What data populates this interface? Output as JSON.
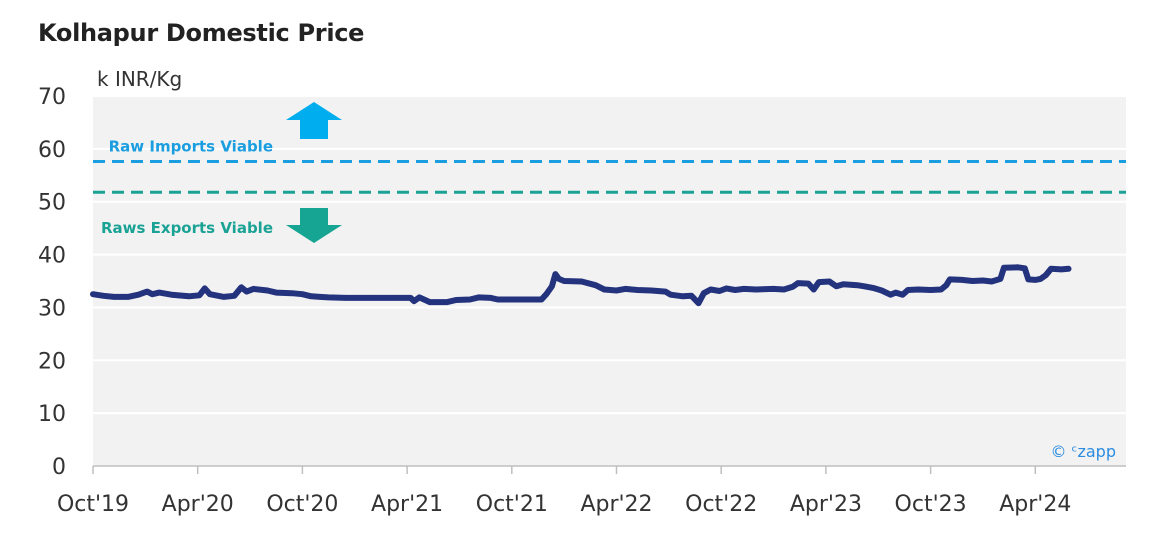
{
  "chart_data": {
    "type": "line",
    "title": "Kolhapur Domestic Price",
    "unit_label": "k INR/Kg",
    "ylim": [
      0,
      70
    ],
    "yticks": [
      0,
      10,
      20,
      30,
      40,
      50,
      60,
      70
    ],
    "x_tick_labels": [
      "Oct'19",
      "Apr'20",
      "Oct'20",
      "Apr'21",
      "Oct'21",
      "Apr'22",
      "Oct'22",
      "Apr'23",
      "Oct'23",
      "Apr'24"
    ],
    "xlim_months": [
      0,
      59.3
    ],
    "grid": true,
    "background": "#f2f2f2",
    "reference_lines": [
      {
        "label": "Raw Imports Viable",
        "value": 57.6,
        "color": "#1a9ee0",
        "arrow": "up"
      },
      {
        "label": "Raws Exports Viable",
        "value": 51.8,
        "color": "#1aa395",
        "arrow": "down"
      }
    ],
    "series": [
      {
        "color": "#24337d",
        "points": [
          [
            0.0,
            32.5
          ],
          [
            0.6,
            32.2
          ],
          [
            1.2,
            32.0
          ],
          [
            2.0,
            32.0
          ],
          [
            2.6,
            32.4
          ],
          [
            3.1,
            33.0
          ],
          [
            3.4,
            32.5
          ],
          [
            3.8,
            32.8
          ],
          [
            4.5,
            32.4
          ],
          [
            5.5,
            32.1
          ],
          [
            6.1,
            32.3
          ],
          [
            6.4,
            33.6
          ],
          [
            6.7,
            32.5
          ],
          [
            7.5,
            32.0
          ],
          [
            8.1,
            32.2
          ],
          [
            8.5,
            33.8
          ],
          [
            8.8,
            33.0
          ],
          [
            9.2,
            33.5
          ],
          [
            10.0,
            33.2
          ],
          [
            10.5,
            32.8
          ],
          [
            11.4,
            32.7
          ],
          [
            12.0,
            32.5
          ],
          [
            12.5,
            32.1
          ],
          [
            13.0,
            32.0
          ],
          [
            13.5,
            31.9
          ],
          [
            14.5,
            31.8
          ],
          [
            16.0,
            31.8
          ],
          [
            17.5,
            31.8
          ],
          [
            18.2,
            31.8
          ],
          [
            18.4,
            31.2
          ],
          [
            18.7,
            31.9
          ],
          [
            19.3,
            31.0
          ],
          [
            20.3,
            31.0
          ],
          [
            20.8,
            31.4
          ],
          [
            21.6,
            31.5
          ],
          [
            22.1,
            31.9
          ],
          [
            22.8,
            31.8
          ],
          [
            23.2,
            31.5
          ],
          [
            24.0,
            31.5
          ],
          [
            25.0,
            31.5
          ],
          [
            25.7,
            31.5
          ],
          [
            26.0,
            32.6
          ],
          [
            26.3,
            34.0
          ],
          [
            26.5,
            36.3
          ],
          [
            26.7,
            35.4
          ],
          [
            27.0,
            35.0
          ],
          [
            28.0,
            34.9
          ],
          [
            28.8,
            34.2
          ],
          [
            29.3,
            33.4
          ],
          [
            30.0,
            33.2
          ],
          [
            30.5,
            33.5
          ],
          [
            31.2,
            33.3
          ],
          [
            32.0,
            33.2
          ],
          [
            32.8,
            33.0
          ],
          [
            33.1,
            32.4
          ],
          [
            33.8,
            32.1
          ],
          [
            34.3,
            32.2
          ],
          [
            34.7,
            30.8
          ],
          [
            35.0,
            32.7
          ],
          [
            35.4,
            33.4
          ],
          [
            35.9,
            33.1
          ],
          [
            36.3,
            33.6
          ],
          [
            36.8,
            33.3
          ],
          [
            37.3,
            33.5
          ],
          [
            38.0,
            33.4
          ],
          [
            39.0,
            33.5
          ],
          [
            39.6,
            33.4
          ],
          [
            40.1,
            33.9
          ],
          [
            40.4,
            34.6
          ],
          [
            41.0,
            34.5
          ],
          [
            41.3,
            33.4
          ],
          [
            41.6,
            34.8
          ],
          [
            42.2,
            34.9
          ],
          [
            42.6,
            34.0
          ],
          [
            43.0,
            34.4
          ],
          [
            43.8,
            34.2
          ],
          [
            44.2,
            34.0
          ],
          [
            44.7,
            33.7
          ],
          [
            45.2,
            33.2
          ],
          [
            45.7,
            32.4
          ],
          [
            46.0,
            32.8
          ],
          [
            46.4,
            32.4
          ],
          [
            46.7,
            33.3
          ],
          [
            47.3,
            33.4
          ],
          [
            48.0,
            33.3
          ],
          [
            48.6,
            33.4
          ],
          [
            48.9,
            34.2
          ],
          [
            49.1,
            35.3
          ],
          [
            49.8,
            35.2
          ],
          [
            50.4,
            35.0
          ],
          [
            51.0,
            35.1
          ],
          [
            51.5,
            34.9
          ],
          [
            52.0,
            35.4
          ],
          [
            52.2,
            37.5
          ],
          [
            53.0,
            37.6
          ],
          [
            53.4,
            37.4
          ],
          [
            53.6,
            35.3
          ],
          [
            54.0,
            35.2
          ],
          [
            54.3,
            35.4
          ],
          [
            54.6,
            36.1
          ],
          [
            54.9,
            37.3
          ],
          [
            55.5,
            37.2
          ],
          [
            55.9,
            37.3
          ]
        ]
      }
    ]
  },
  "credit": "© ᶜzapp"
}
